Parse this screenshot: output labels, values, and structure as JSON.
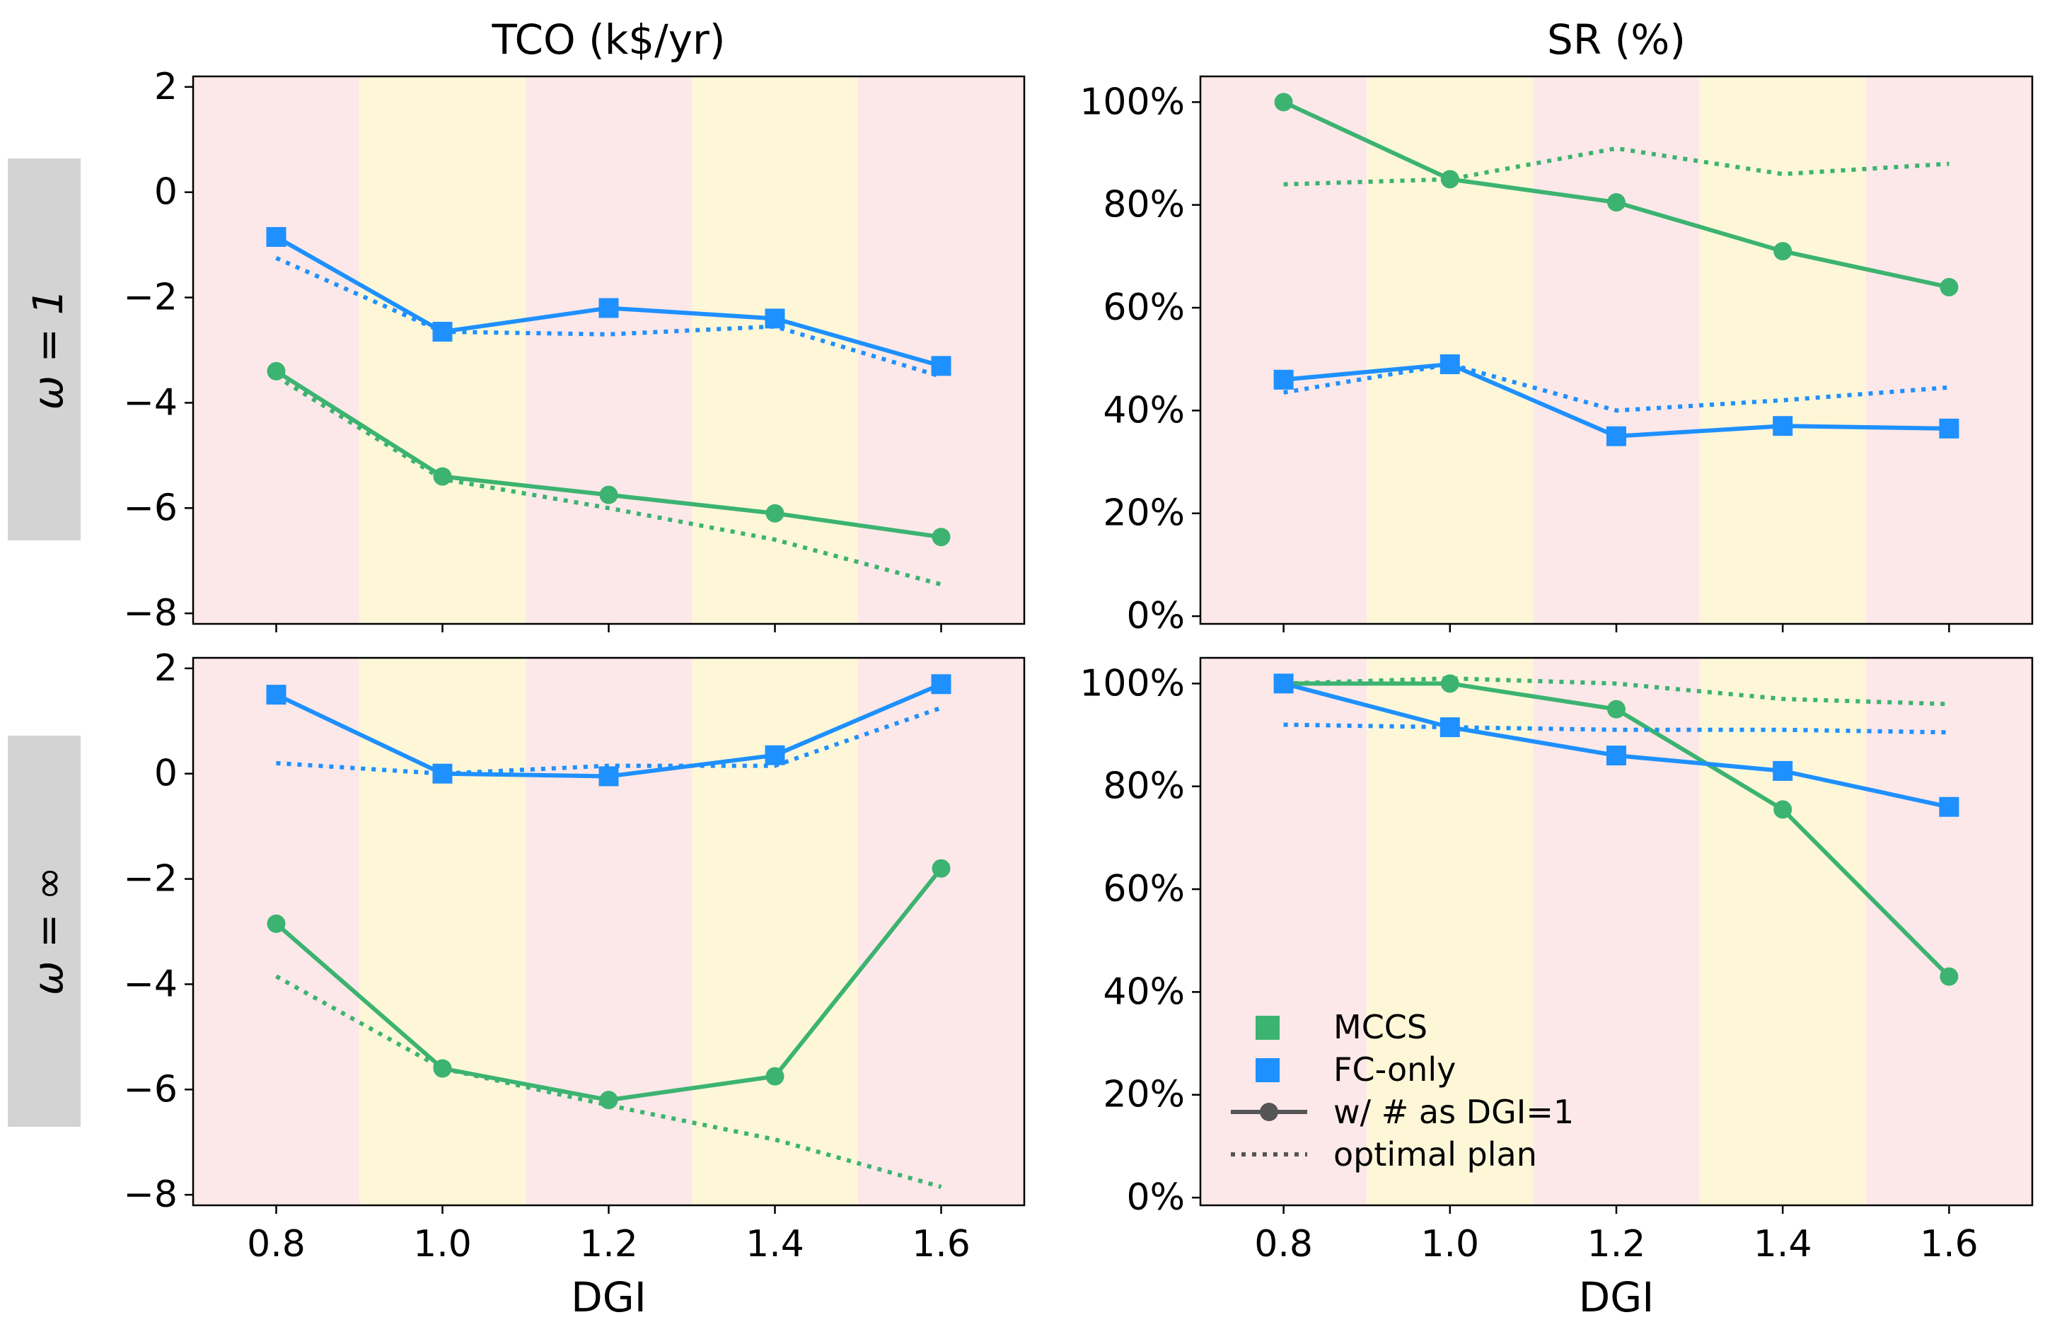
{
  "chart_data": [
    {
      "type": "line",
      "panel": "top-left",
      "row_label": "ω = 1",
      "title": "TCO (k$/yr)",
      "xlabel": "",
      "ylabel": "",
      "x": [
        0.8,
        1.0,
        1.2,
        1.4,
        1.6
      ],
      "xlim": [
        0.7,
        1.7
      ],
      "ylim": [
        -8.2,
        2.2
      ],
      "yticks": [
        2,
        0,
        -2,
        -4,
        -6,
        -8
      ],
      "ytick_labels": [
        "2",
        "0",
        "−2",
        "−4",
        "−6",
        "−8"
      ],
      "xtick_labels": [
        "",
        "",
        "",
        "",
        ""
      ],
      "series": [
        {
          "name": "MCCS w/ # as DGI=1",
          "style": "solid",
          "marker": "circle",
          "color": "#3cb371",
          "values": [
            -3.4,
            -5.4,
            -5.75,
            -6.1,
            -6.55
          ]
        },
        {
          "name": "FC-only w/ # as DGI=1",
          "style": "solid",
          "marker": "square",
          "color": "#1e90ff",
          "values": [
            -0.85,
            -2.65,
            -2.2,
            -2.4,
            -3.3
          ]
        },
        {
          "name": "MCCS optimal plan",
          "style": "dotted",
          "color": "#3cb371",
          "values": [
            -3.5,
            -5.45,
            -6.0,
            -6.6,
            -7.45
          ]
        },
        {
          "name": "FC-only optimal plan",
          "style": "dotted",
          "color": "#1e90ff",
          "values": [
            -1.25,
            -2.65,
            -2.7,
            -2.55,
            -3.5
          ]
        }
      ]
    },
    {
      "type": "line",
      "panel": "top-right",
      "row_label": "ω = 1",
      "title": "SR (%)",
      "xlabel": "",
      "ylabel": "",
      "x": [
        0.8,
        1.0,
        1.2,
        1.4,
        1.6
      ],
      "xlim": [
        0.7,
        1.7
      ],
      "ylim": [
        -1.5,
        105
      ],
      "yticks": [
        100,
        80,
        60,
        40,
        20,
        0
      ],
      "ytick_labels": [
        "100%",
        "80%",
        "60%",
        "40%",
        "20%",
        "0%"
      ],
      "xtick_labels": [
        "",
        "",
        "",
        "",
        ""
      ],
      "series": [
        {
          "name": "MCCS w/ # as DGI=1",
          "style": "solid",
          "marker": "circle",
          "color": "#3cb371",
          "values": [
            100,
            85,
            80.5,
            71,
            64
          ]
        },
        {
          "name": "FC-only w/ # as DGI=1",
          "style": "solid",
          "marker": "square",
          "color": "#1e90ff",
          "values": [
            46,
            49,
            35,
            37,
            36.5
          ]
        },
        {
          "name": "MCCS optimal plan",
          "style": "dotted",
          "color": "#3cb371",
          "values": [
            84,
            85,
            91,
            86,
            88
          ]
        },
        {
          "name": "FC-only optimal plan",
          "style": "dotted",
          "color": "#1e90ff",
          "values": [
            43.5,
            49,
            40,
            42,
            44.5
          ]
        }
      ]
    },
    {
      "type": "line",
      "panel": "bottom-left",
      "row_label": "ω = ∞",
      "title": "",
      "xlabel": "DGI",
      "ylabel": "",
      "x": [
        0.8,
        1.0,
        1.2,
        1.4,
        1.6
      ],
      "xlim": [
        0.7,
        1.7
      ],
      "ylim": [
        -8.2,
        2.2
      ],
      "yticks": [
        2,
        0,
        -2,
        -4,
        -6,
        -8
      ],
      "ytick_labels": [
        "2",
        "0",
        "−2",
        "−4",
        "−6",
        "−8"
      ],
      "xtick_labels": [
        "0.8",
        "1.0",
        "1.2",
        "1.4",
        "1.6"
      ],
      "series": [
        {
          "name": "MCCS w/ # as DGI=1",
          "style": "solid",
          "marker": "circle",
          "color": "#3cb371",
          "values": [
            -2.85,
            -5.6,
            -6.2,
            -5.75,
            -1.8
          ]
        },
        {
          "name": "FC-only w/ # as DGI=1",
          "style": "solid",
          "marker": "square",
          "color": "#1e90ff",
          "values": [
            1.5,
            0.0,
            -0.05,
            0.35,
            1.7
          ]
        },
        {
          "name": "MCCS optimal plan",
          "style": "dotted",
          "color": "#3cb371",
          "values": [
            -3.85,
            -5.6,
            -6.3,
            -6.95,
            -7.85
          ]
        },
        {
          "name": "FC-only optimal plan",
          "style": "dotted",
          "color": "#1e90ff",
          "values": [
            0.2,
            0.0,
            0.15,
            0.15,
            1.25
          ]
        }
      ]
    },
    {
      "type": "line",
      "panel": "bottom-right",
      "row_label": "ω = ∞",
      "title": "",
      "xlabel": "DGI",
      "ylabel": "",
      "x": [
        0.8,
        1.0,
        1.2,
        1.4,
        1.6
      ],
      "xlim": [
        0.7,
        1.7
      ],
      "ylim": [
        -1.5,
        105
      ],
      "yticks": [
        100,
        80,
        60,
        40,
        20,
        0
      ],
      "ytick_labels": [
        "100%",
        "80%",
        "60%",
        "40%",
        "20%",
        "0%"
      ],
      "xtick_labels": [
        "0.8",
        "1.0",
        "1.2",
        "1.4",
        "1.6"
      ],
      "series": [
        {
          "name": "MCCS w/ # as DGI=1",
          "style": "solid",
          "marker": "circle",
          "color": "#3cb371",
          "values": [
            100,
            100,
            95,
            75.5,
            43
          ]
        },
        {
          "name": "FC-only w/ # as DGI=1",
          "style": "solid",
          "marker": "square",
          "color": "#1e90ff",
          "values": [
            100,
            91.5,
            86,
            83,
            76
          ]
        },
        {
          "name": "MCCS optimal plan",
          "style": "dotted",
          "color": "#3cb371",
          "values": [
            100,
            101,
            100,
            97,
            96
          ]
        },
        {
          "name": "FC-only optimal plan",
          "style": "dotted",
          "color": "#1e90ff",
          "values": [
            92,
            91.5,
            91,
            91,
            90.5
          ]
        }
      ]
    }
  ],
  "background_bands": [
    {
      "x_from": 0.7,
      "x_to": 0.9,
      "color": "#fce8e8"
    },
    {
      "x_from": 0.9,
      "x_to": 1.1,
      "color": "#fdf7d8"
    },
    {
      "x_from": 1.1,
      "x_to": 1.3,
      "color": "#fce8e8"
    },
    {
      "x_from": 1.3,
      "x_to": 1.5,
      "color": "#fdf7d8"
    },
    {
      "x_from": 1.5,
      "x_to": 1.7,
      "color": "#fce8e8"
    }
  ],
  "row_labels": [
    "ω = 1",
    "ω = ∞"
  ],
  "legend": {
    "placement": "lower-left of bottom-right panel",
    "entries": [
      {
        "label": "MCCS",
        "kind": "square",
        "color": "#3cb371"
      },
      {
        "label": "FC-only",
        "kind": "square",
        "color": "#1e90ff"
      },
      {
        "label": "w/ # as DGI=1",
        "kind": "solid-line-marker",
        "color": "#555555"
      },
      {
        "label": "optimal plan",
        "kind": "dotted-line",
        "color": "#555555"
      }
    ]
  },
  "colors": {
    "mccs": "#3cb371",
    "fc_only": "#1e90ff",
    "row_label_bg": "#d3d3d3",
    "legend_gray": "#555555"
  }
}
